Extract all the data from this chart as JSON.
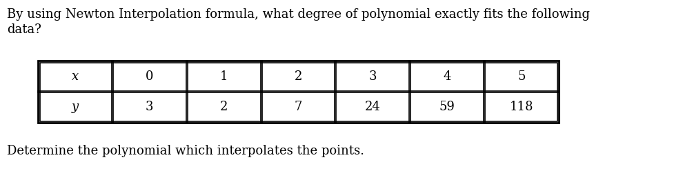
{
  "title_text": "By using Newton Interpolation formula, what degree of polynomial exactly fits the following\ndata?",
  "subtitle": "Determine the polynomial which interpolates the points.",
  "x_label": "x",
  "y_label": "y",
  "x_values": [
    "0",
    "1",
    "2",
    "3",
    "4",
    "5"
  ],
  "y_values": [
    "3",
    "2",
    "7",
    "24",
    "59",
    "118"
  ],
  "background_color": "#ffffff",
  "text_color": "#000000",
  "table_line_color": "#000000",
  "font_size_title": 13.0,
  "font_size_table": 13.0,
  "font_size_subtitle": 13.0,
  "fig_width": 9.9,
  "fig_height": 2.61,
  "dpi": 100
}
